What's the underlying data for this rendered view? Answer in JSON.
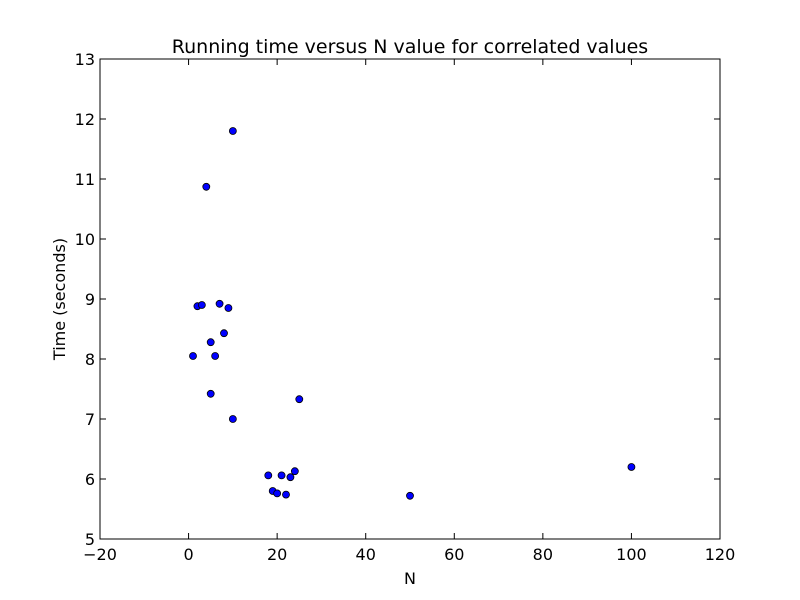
{
  "chart_data": {
    "type": "scatter",
    "title": "Running time versus N value for correlated values",
    "xlabel": "N",
    "ylabel": "Time (seconds)",
    "xlim": [
      -20,
      120
    ],
    "ylim": [
      5,
      13
    ],
    "xticks": [
      -20,
      0,
      20,
      40,
      60,
      80,
      100,
      120
    ],
    "yticks": [
      5,
      6,
      7,
      8,
      9,
      10,
      11,
      12,
      13
    ],
    "xtick_labels": [
      "−20",
      "0",
      "20",
      "40",
      "60",
      "80",
      "100",
      "120"
    ],
    "ytick_labels": [
      "5",
      "6",
      "7",
      "8",
      "9",
      "10",
      "11",
      "12",
      "13"
    ],
    "grid": false,
    "marker_color": "#0000ff",
    "marker_edge_color": "#000000",
    "points": [
      {
        "x": 1,
        "y": 8.05
      },
      {
        "x": 2,
        "y": 8.88
      },
      {
        "x": 3,
        "y": 8.9
      },
      {
        "x": 4,
        "y": 10.87
      },
      {
        "x": 5,
        "y": 8.28
      },
      {
        "x": 5,
        "y": 7.42
      },
      {
        "x": 6,
        "y": 8.05
      },
      {
        "x": 7,
        "y": 8.92
      },
      {
        "x": 8,
        "y": 8.43
      },
      {
        "x": 9,
        "y": 8.85
      },
      {
        "x": 10,
        "y": 11.8
      },
      {
        "x": 10,
        "y": 7.0
      },
      {
        "x": 18,
        "y": 6.06
      },
      {
        "x": 19,
        "y": 5.8
      },
      {
        "x": 20,
        "y": 5.76
      },
      {
        "x": 21,
        "y": 6.06
      },
      {
        "x": 22,
        "y": 5.74
      },
      {
        "x": 23,
        "y": 6.03
      },
      {
        "x": 24,
        "y": 6.13
      },
      {
        "x": 25,
        "y": 7.33
      },
      {
        "x": 50,
        "y": 5.72
      },
      {
        "x": 100,
        "y": 6.2
      }
    ]
  }
}
